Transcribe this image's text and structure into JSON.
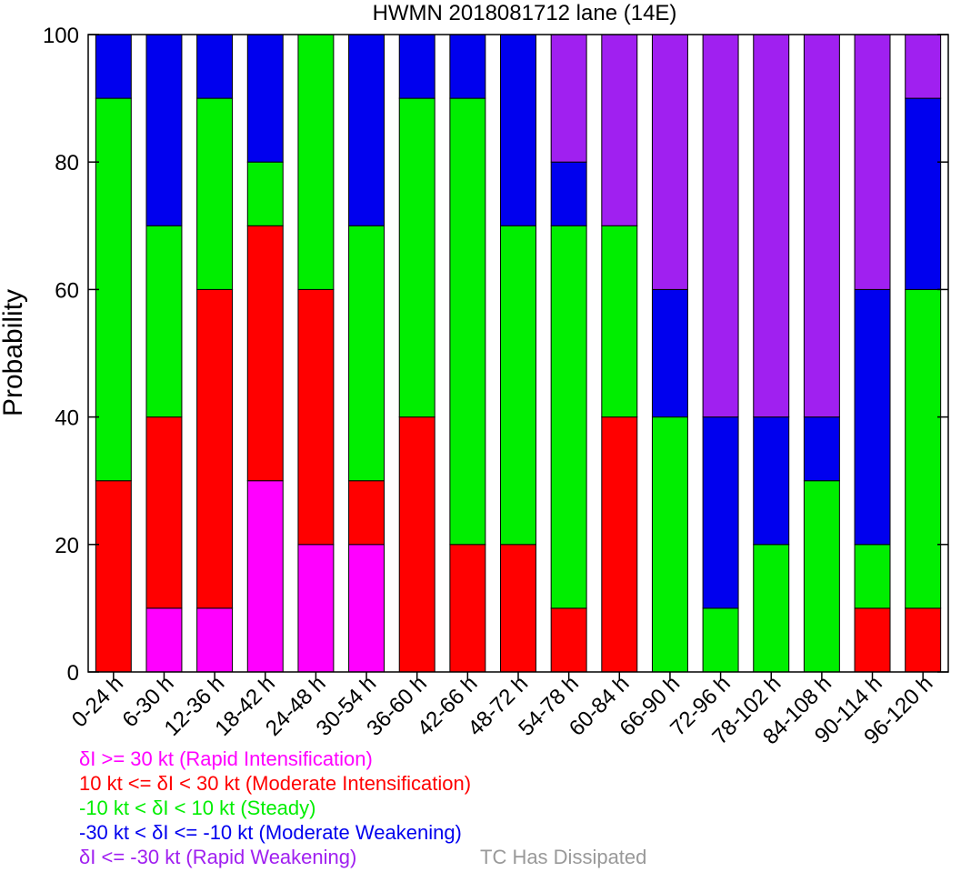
{
  "chart_data": {
    "type": "bar",
    "stacked": true,
    "title": "HWMN 2018081712 lane (14E)",
    "ylabel": "Probability",
    "ylim": [
      0,
      100
    ],
    "yticks": [
      0,
      20,
      40,
      60,
      80,
      100
    ],
    "categories": [
      "0-24 h",
      "6-30 h",
      "12-36 h",
      "18-42 h",
      "24-48 h",
      "30-54 h",
      "36-60 h",
      "42-66 h",
      "48-72 h",
      "54-78 h",
      "60-84 h",
      "66-90 h",
      "72-96 h",
      "78-102 h",
      "84-108 h",
      "90-114 h",
      "96-120 h"
    ],
    "series": [
      {
        "name": "δI >= 30 kt (Rapid Intensification)",
        "color": "#ff00ff",
        "values": [
          0,
          10,
          10,
          30,
          20,
          20,
          0,
          0,
          0,
          0,
          0,
          0,
          0,
          0,
          0,
          0,
          0
        ]
      },
      {
        "name": "10 kt <= δI < 30 kt (Moderate Intensification)",
        "color": "#ff0000",
        "values": [
          30,
          30,
          50,
          40,
          40,
          10,
          40,
          20,
          20,
          10,
          40,
          0,
          0,
          0,
          0,
          10,
          10
        ]
      },
      {
        "name": "-10 kt < δI < 10 kt (Steady)",
        "color": "#00ee00",
        "values": [
          60,
          30,
          30,
          10,
          40,
          40,
          50,
          70,
          50,
          60,
          30,
          40,
          10,
          20,
          30,
          10,
          50
        ]
      },
      {
        "name": "-30 kt < δI <= -10 kt (Moderate Weakening)",
        "color": "#0000ee",
        "values": [
          10,
          30,
          10,
          20,
          0,
          30,
          10,
          10,
          30,
          10,
          0,
          20,
          30,
          20,
          10,
          40,
          30
        ]
      },
      {
        "name": "δI <= -30 kt (Rapid Weakening)",
        "color": "#a020f0",
        "values": [
          0,
          0,
          0,
          0,
          0,
          0,
          0,
          0,
          0,
          20,
          30,
          40,
          60,
          60,
          60,
          40,
          10
        ]
      }
    ],
    "dissipated": {
      "name": "TC Has Dissipated",
      "color": "#999999"
    }
  }
}
